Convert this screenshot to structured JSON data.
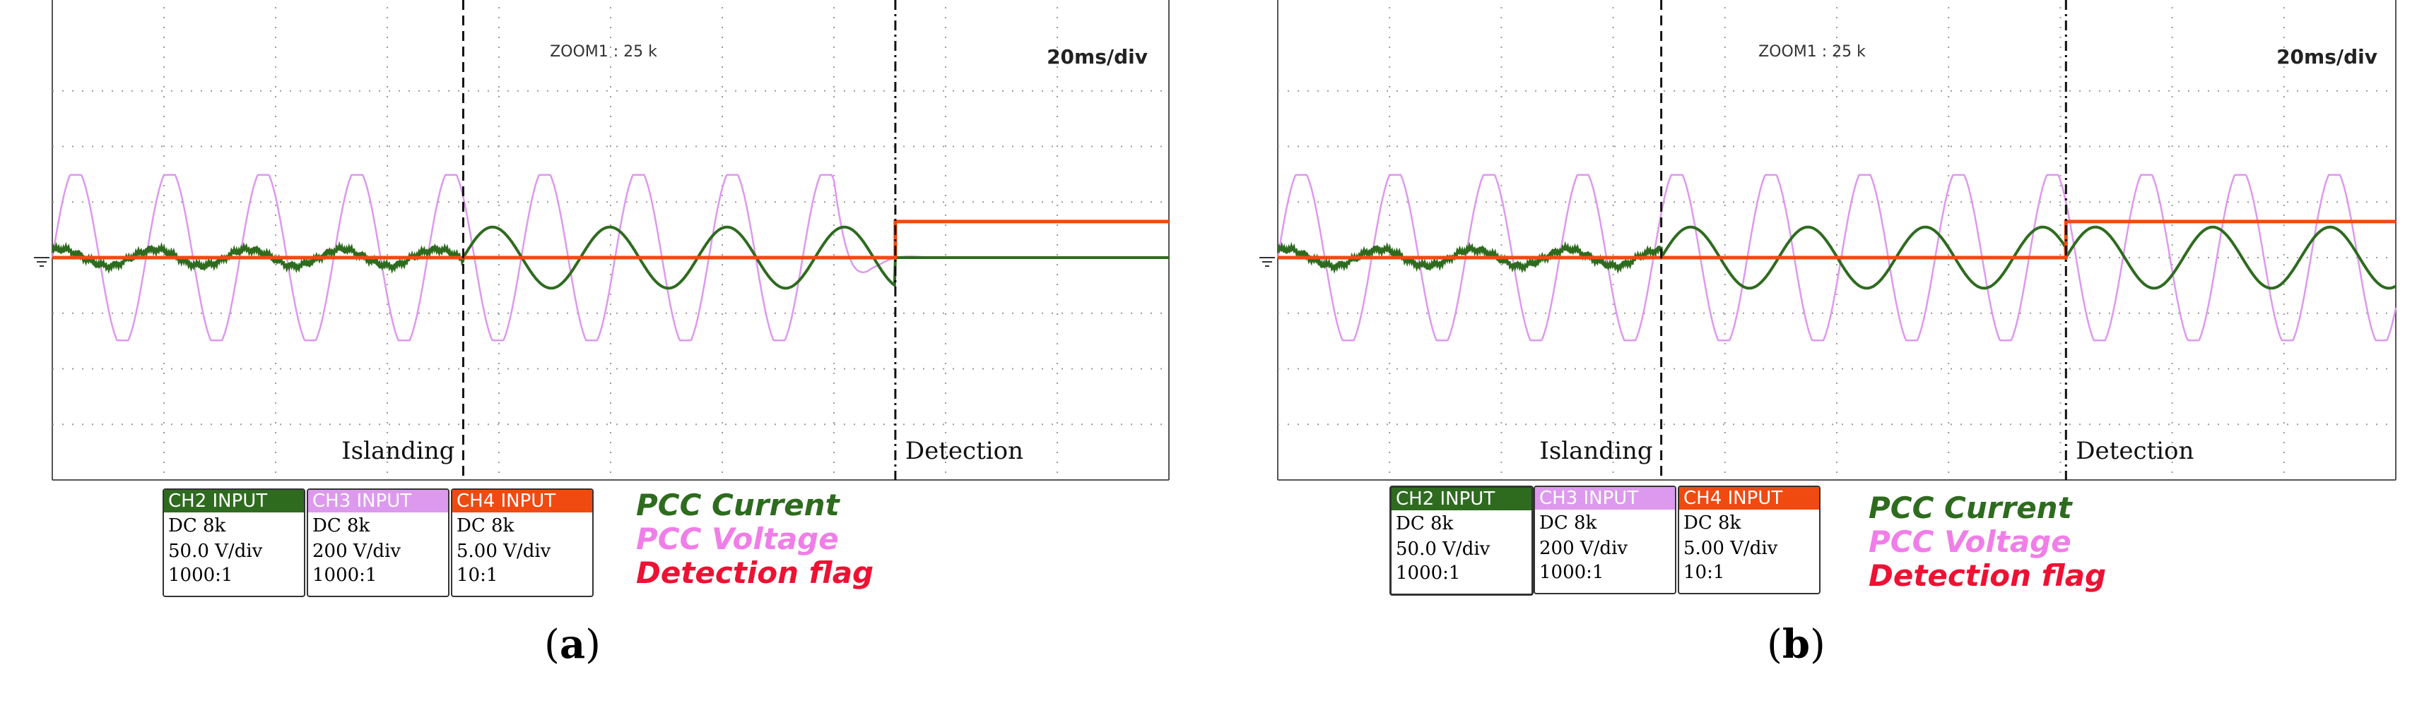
{
  "panels": [
    {
      "caption_open": "(",
      "caption_letter": "a",
      "caption_close": ")",
      "zoom_label": "ZOOM1 : 25 k",
      "timebase": "20ms/div",
      "annotations": {
        "islanding": "Islanding",
        "detection": "Detection"
      },
      "channels": [
        {
          "header": "CH2 INPUT",
          "coupling": "DC 8k",
          "scale": "50.0 V/div",
          "probe": "1000:1",
          "color": "#2e6b1f"
        },
        {
          "header": "CH3 INPUT",
          "coupling": "DC 8k",
          "scale": "200 V/div",
          "probe": "1000:1",
          "color": "#dd99ee"
        },
        {
          "header": "CH4 INPUT",
          "coupling": "DC 8k",
          "scale": "5.00 V/div",
          "probe": "10:1",
          "color": "#f04a10"
        }
      ],
      "legend": [
        {
          "label": "PCC Current",
          "color": "#2e6b1f"
        },
        {
          "label": "PCC Voltage",
          "color": "#f07ee8"
        },
        {
          "label": "Detection flag",
          "color": "#ee1133"
        }
      ]
    },
    {
      "caption_open": "(",
      "caption_letter": "b",
      "caption_close": ")",
      "zoom_label": "ZOOM1 : 25 k",
      "timebase": "20ms/div",
      "annotations": {
        "islanding": "Islanding",
        "detection": "Detection"
      },
      "channels": [
        {
          "header": "CH2 INPUT",
          "coupling": "DC 8k",
          "scale": "50.0 V/div",
          "probe": "1000:1",
          "color": "#2e6b1f"
        },
        {
          "header": "CH3 INPUT",
          "coupling": "DC 8k",
          "scale": "200 V/div",
          "probe": "1000:1",
          "color": "#dd99ee"
        },
        {
          "header": "CH4 INPUT",
          "coupling": "DC 8k",
          "scale": "5.00 V/div",
          "probe": "10:1",
          "color": "#f04a10"
        }
      ],
      "legend": [
        {
          "label": "PCC Current",
          "color": "#2e6b1f"
        },
        {
          "label": "PCC Voltage",
          "color": "#f07ee8"
        },
        {
          "label": "Detection flag",
          "color": "#ee1133"
        }
      ]
    }
  ],
  "chart_data": [
    {
      "type": "line",
      "x_unit": "div",
      "y_unit": "div",
      "xlim": [
        0,
        10
      ],
      "ylim": [
        -4,
        4
      ],
      "grid": true,
      "timebase": "20ms/div",
      "events": [
        {
          "label": "Islanding",
          "x": 3.68
        },
        {
          "label": "Detection",
          "x": 7.55
        }
      ],
      "series": [
        {
          "name": "PCC Voltage",
          "channel": "CH3",
          "color": "#dd99ee",
          "amplitude_div": 1.6,
          "period_div": 0.84,
          "decays_to_zero_after_div": 7.0
        },
        {
          "name": "PCC Current",
          "channel": "CH2",
          "color": "#2e6b1f",
          "amplitude_before_islanding_div": 0.15,
          "amplitude_after_islanding_div": 0.55,
          "amplitude_after_detection_div": 0.0
        },
        {
          "name": "Detection flag",
          "channel": "CH4",
          "color": "#f04a10",
          "level_before_detection_div": 0.0,
          "level_after_detection_div": 0.65
        }
      ]
    },
    {
      "type": "line",
      "x_unit": "div",
      "y_unit": "div",
      "xlim": [
        0,
        10
      ],
      "ylim": [
        -4,
        4
      ],
      "grid": true,
      "timebase": "20ms/div",
      "events": [
        {
          "label": "Islanding",
          "x": 3.43
        },
        {
          "label": "Detection",
          "x": 7.05
        }
      ],
      "series": [
        {
          "name": "PCC Voltage",
          "channel": "CH3",
          "color": "#dd99ee",
          "amplitude_div": 1.6,
          "period_div": 0.84,
          "decays_to_zero_after_div": null
        },
        {
          "name": "PCC Current",
          "channel": "CH2",
          "color": "#2e6b1f",
          "amplitude_before_islanding_div": 0.15,
          "amplitude_after_islanding_div": 0.55,
          "amplitude_after_detection_div": 0.55
        },
        {
          "name": "Detection flag",
          "channel": "CH4",
          "color": "#f04a10",
          "level_before_detection_div": 0.0,
          "level_after_detection_div": 0.65
        }
      ]
    }
  ]
}
